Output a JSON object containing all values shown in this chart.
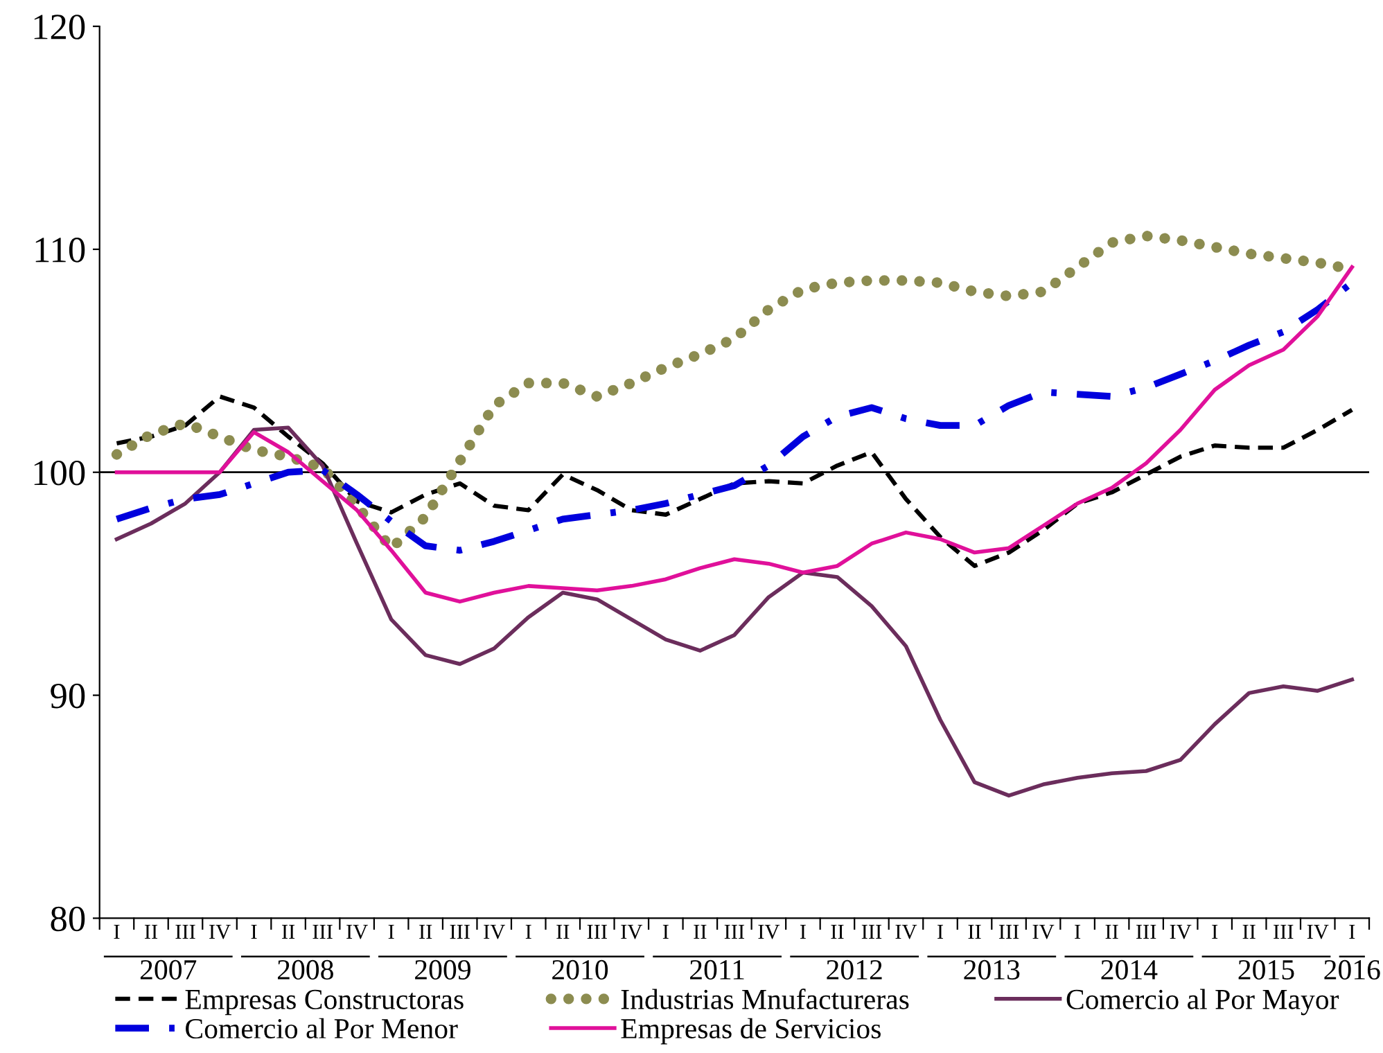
{
  "chart_data": {
    "type": "line",
    "categories": [
      "I",
      "II",
      "III",
      "IV",
      "I",
      "II",
      "III",
      "IV",
      "I",
      "II",
      "III",
      "IV",
      "I",
      "II",
      "III",
      "IV",
      "I",
      "II",
      "III",
      "IV",
      "I",
      "II",
      "III",
      "IV",
      "I",
      "II",
      "III",
      "IV",
      "I",
      "II",
      "III",
      "IV",
      "I",
      "II",
      "III",
      "IV",
      "I"
    ],
    "annotations": [
      "2007",
      "2008",
      "2009",
      "2010",
      "2011",
      "2012",
      "2013",
      "2014",
      "2015",
      "2016"
    ],
    "series": [
      {
        "name": "Empresas Constructoras",
        "color": "#000000",
        "line_style": "dashed",
        "values": [
          101.3,
          101.6,
          102.1,
          103.4,
          102.9,
          101.6,
          100.4,
          98.7,
          98.2,
          99.0,
          99.5,
          98.5,
          98.3,
          99.9,
          99.2,
          98.3,
          98.1,
          98.8,
          99.5,
          99.6,
          99.5,
          100.3,
          100.9,
          98.8,
          97.1,
          95.8,
          96.4,
          97.4,
          98.6,
          99.1,
          99.9,
          100.7,
          101.2,
          101.1,
          101.1,
          101.9,
          102.8
        ]
      },
      {
        "name": "Industrias Mnufactureras",
        "color": "#8c8c50",
        "line_style": "dotted",
        "values": [
          100.8,
          101.7,
          102.2,
          101.6,
          101.0,
          100.7,
          100.2,
          98.5,
          96.6,
          98.0,
          100.5,
          103.0,
          104.0,
          104.0,
          103.4,
          104.0,
          104.7,
          105.3,
          106.0,
          107.3,
          108.2,
          108.5,
          108.6,
          108.6,
          108.5,
          108.1,
          107.9,
          108.1,
          109.2,
          110.3,
          110.6,
          110.4,
          110.1,
          109.8,
          109.6,
          109.4,
          109.1
        ]
      },
      {
        "name": "Comercio al Por Mayor",
        "color": "#6b2d5c",
        "line_style": "solid",
        "values": [
          97.0,
          97.7,
          98.6,
          100.0,
          101.9,
          102.0,
          100.3,
          96.8,
          93.4,
          91.8,
          91.4,
          92.1,
          93.5,
          94.6,
          94.3,
          93.4,
          92.5,
          92.0,
          92.7,
          94.4,
          95.5,
          95.3,
          94.0,
          92.2,
          88.9,
          86.1,
          85.5,
          86.0,
          86.3,
          86.5,
          86.6,
          87.1,
          88.7,
          90.1,
          90.4,
          90.2,
          90.7
        ]
      },
      {
        "name": "Comercio al Por Menor",
        "color": "#0000dd",
        "line_style": "dashdot",
        "values": [
          97.9,
          98.4,
          98.8,
          99.0,
          99.5,
          100.0,
          100.1,
          99.0,
          97.8,
          96.7,
          96.5,
          96.9,
          97.4,
          97.9,
          98.1,
          98.3,
          98.6,
          99.0,
          99.4,
          100.3,
          101.6,
          102.5,
          102.9,
          102.4,
          102.1,
          102.1,
          103.0,
          103.6,
          103.5,
          103.4,
          103.8,
          104.4,
          105.0,
          105.7,
          106.3,
          107.3,
          108.5
        ]
      },
      {
        "name": "Empresas de Servicios",
        "color": "#e0109a",
        "line_style": "solid",
        "values": [
          100,
          100,
          100,
          100,
          101.8,
          100.9,
          99.6,
          98.3,
          96.5,
          94.6,
          94.2,
          94.6,
          94.9,
          94.8,
          94.7,
          94.9,
          95.2,
          95.7,
          96.1,
          95.9,
          95.5,
          95.8,
          96.8,
          97.3,
          97.0,
          96.4,
          96.6,
          97.6,
          98.6,
          99.3,
          100.4,
          101.9,
          103.7,
          104.8,
          105.5,
          107.0,
          109.2
        ]
      }
    ],
    "ylim": [
      80,
      120
    ],
    "yticks": [
      80,
      90,
      100,
      110,
      120
    ],
    "ref_lines": [
      {
        "axis": "y",
        "value": 100,
        "color": "#000000"
      }
    ],
    "grid": false,
    "legend": "bottom",
    "marker": "none"
  }
}
